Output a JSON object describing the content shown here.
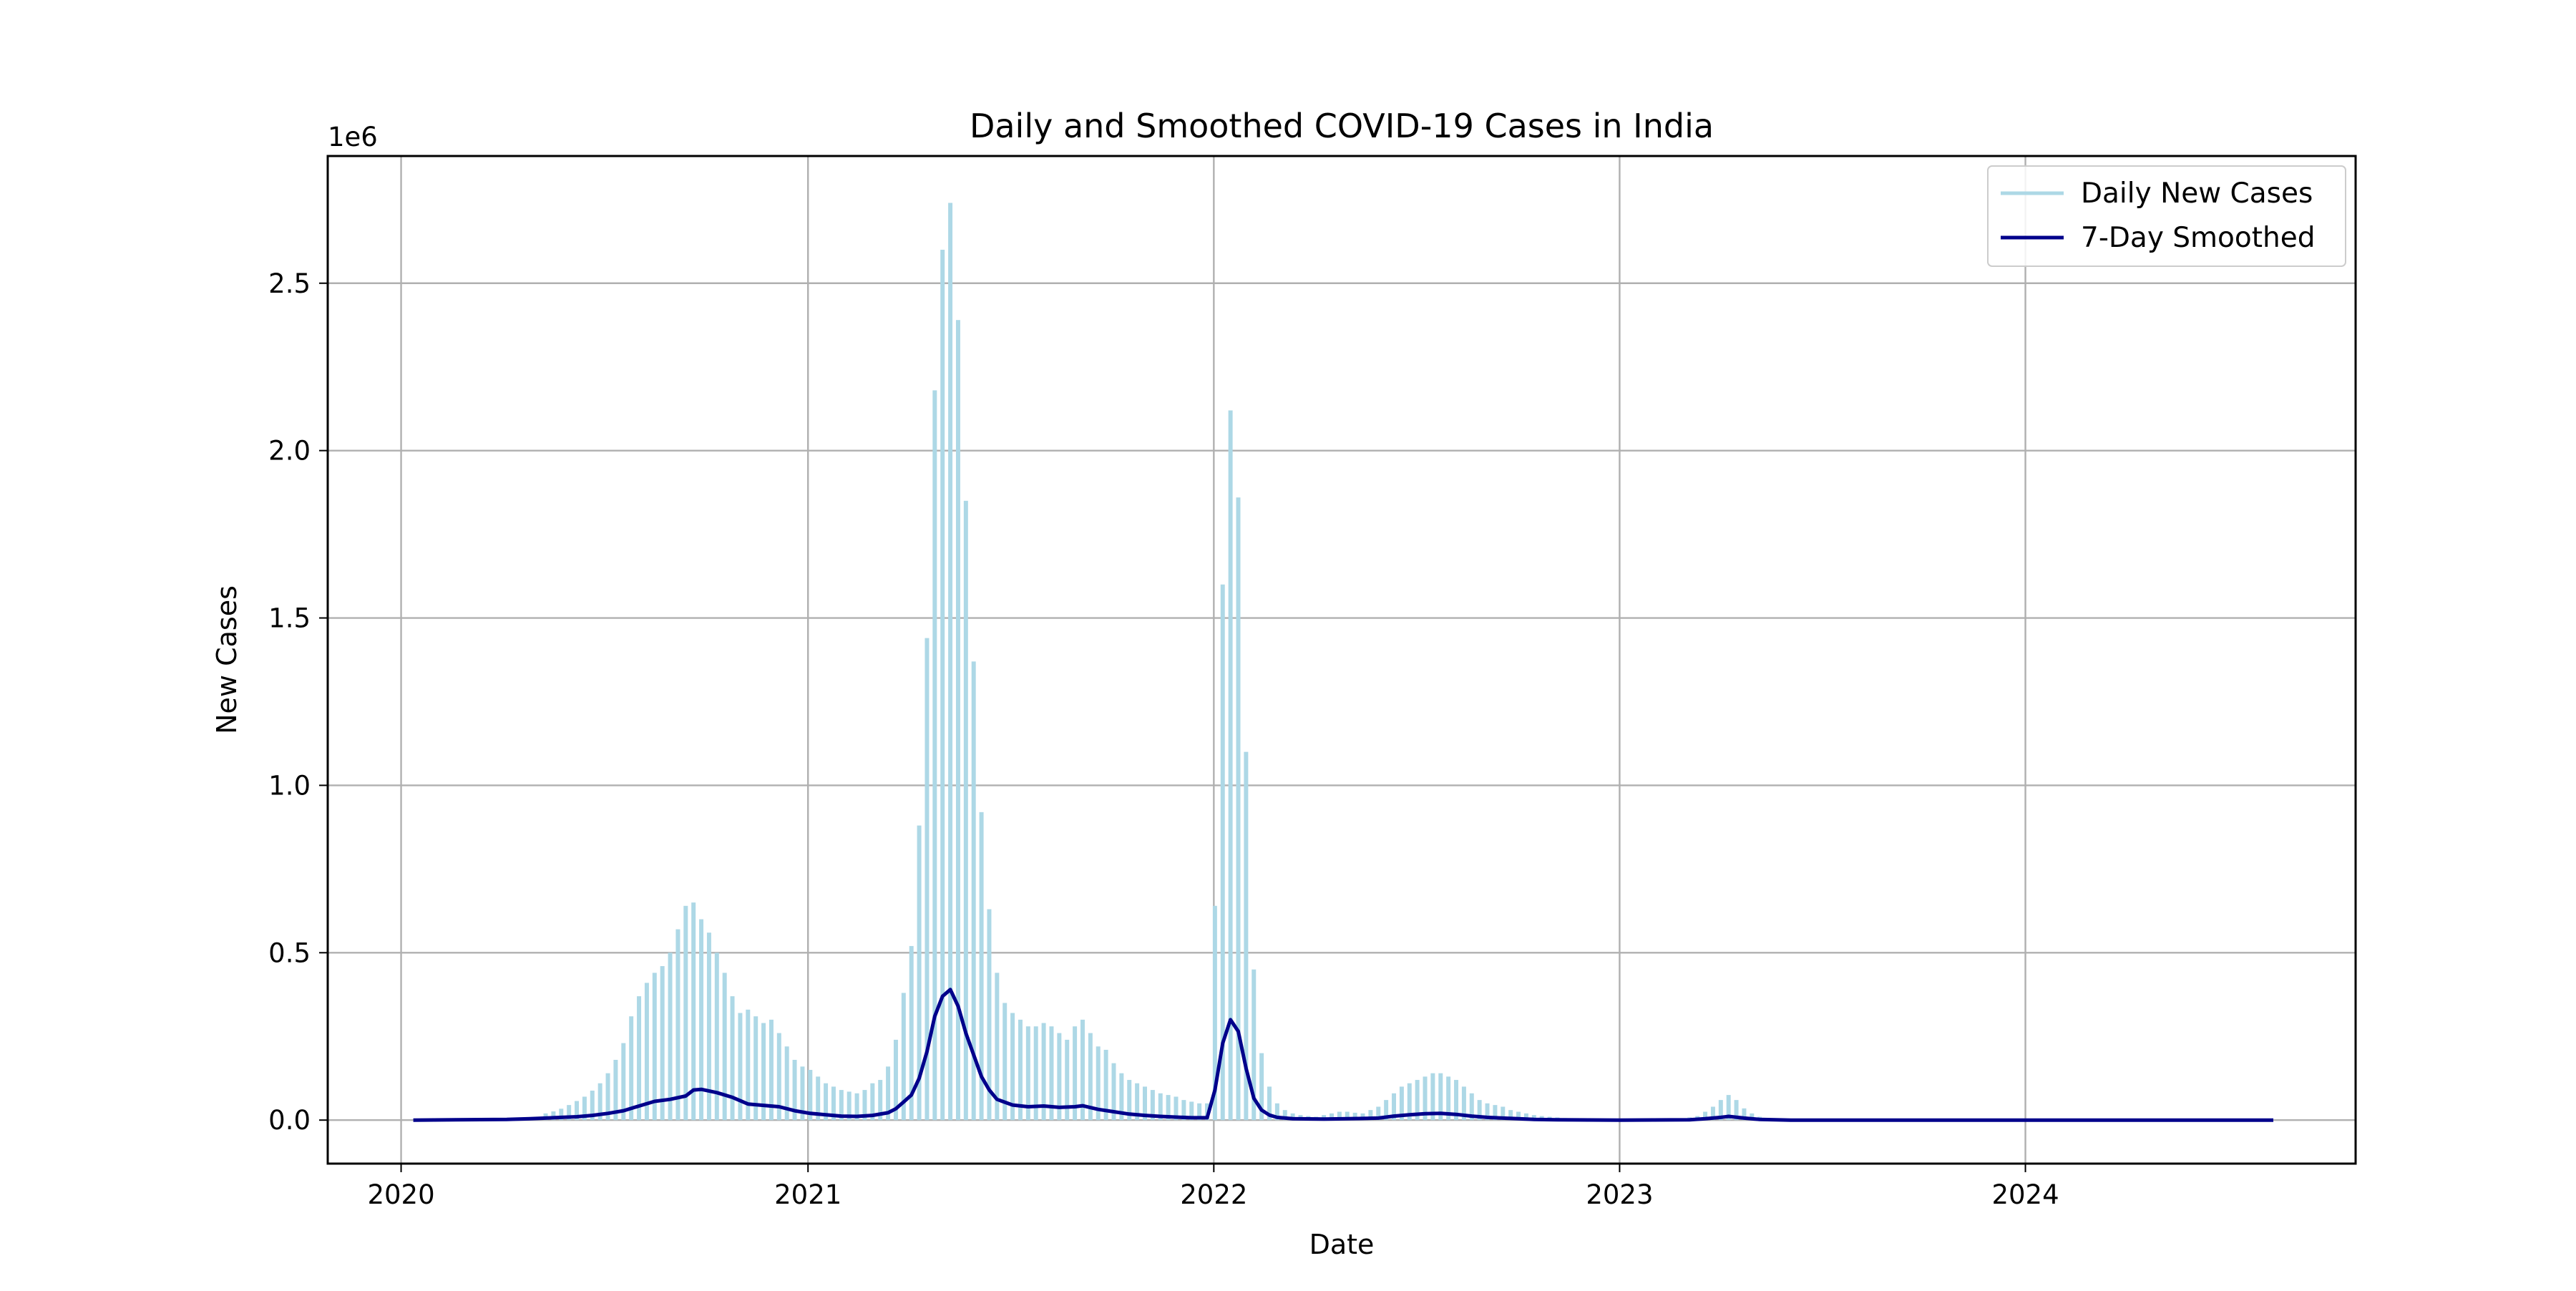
{
  "chart_data": {
    "type": "bar",
    "title": "Daily and Smoothed COVID-19 Cases in India",
    "xlabel": "Date",
    "ylabel": "New Cases",
    "y_offset_label": "1e6",
    "y_scale_factor": 1000000,
    "xlim": [
      "2019-10-27",
      "2024-10-24"
    ],
    "ylim": [
      -0.13,
      2.88
    ],
    "x_ticks": [
      {
        "date": "2020-01-01",
        "label": "2020"
      },
      {
        "date": "2021-01-01",
        "label": "2021"
      },
      {
        "date": "2022-01-01",
        "label": "2022"
      },
      {
        "date": "2023-01-01",
        "label": "2023"
      },
      {
        "date": "2024-01-01",
        "label": "2024"
      }
    ],
    "y_ticks": [
      {
        "value": 0.0,
        "label": "0.0"
      },
      {
        "value": 0.5,
        "label": "0.5"
      },
      {
        "value": 1.0,
        "label": "1.0"
      },
      {
        "value": 1.5,
        "label": "1.5"
      },
      {
        "value": 2.0,
        "label": "2.0"
      },
      {
        "value": 2.5,
        "label": "2.5"
      }
    ],
    "grid": true,
    "legend_position": "top-right",
    "series": [
      {
        "name": "Daily New Cases",
        "kind": "bar",
        "color": "#add8e6",
        "values": [
          [
            "2020-05-10",
            0.02
          ],
          [
            "2020-05-17",
            0.026
          ],
          [
            "2020-05-24",
            0.034
          ],
          [
            "2020-05-31",
            0.045
          ],
          [
            "2020-06-07",
            0.057
          ],
          [
            "2020-06-14",
            0.07
          ],
          [
            "2020-06-21",
            0.088
          ],
          [
            "2020-06-28",
            0.11
          ],
          [
            "2020-07-05",
            0.14
          ],
          [
            "2020-07-12",
            0.18
          ],
          [
            "2020-07-19",
            0.23
          ],
          [
            "2020-07-26",
            0.31
          ],
          [
            "2020-08-02",
            0.37
          ],
          [
            "2020-08-09",
            0.41
          ],
          [
            "2020-08-16",
            0.44
          ],
          [
            "2020-08-23",
            0.46
          ],
          [
            "2020-08-30",
            0.5
          ],
          [
            "2020-09-06",
            0.57
          ],
          [
            "2020-09-13",
            0.64
          ],
          [
            "2020-09-20",
            0.65
          ],
          [
            "2020-09-27",
            0.6
          ],
          [
            "2020-10-04",
            0.56
          ],
          [
            "2020-10-11",
            0.5
          ],
          [
            "2020-10-18",
            0.44
          ],
          [
            "2020-10-25",
            0.37
          ],
          [
            "2020-11-01",
            0.32
          ],
          [
            "2020-11-08",
            0.33
          ],
          [
            "2020-11-15",
            0.31
          ],
          [
            "2020-11-22",
            0.29
          ],
          [
            "2020-11-29",
            0.3
          ],
          [
            "2020-12-06",
            0.26
          ],
          [
            "2020-12-13",
            0.22
          ],
          [
            "2020-12-20",
            0.18
          ],
          [
            "2020-12-27",
            0.16
          ],
          [
            "2021-01-03",
            0.15
          ],
          [
            "2021-01-10",
            0.13
          ],
          [
            "2021-01-17",
            0.11
          ],
          [
            "2021-01-24",
            0.1
          ],
          [
            "2021-01-31",
            0.09
          ],
          [
            "2021-02-07",
            0.085
          ],
          [
            "2021-02-14",
            0.08
          ],
          [
            "2021-02-21",
            0.09
          ],
          [
            "2021-02-28",
            0.11
          ],
          [
            "2021-03-07",
            0.12
          ],
          [
            "2021-03-14",
            0.16
          ],
          [
            "2021-03-21",
            0.24
          ],
          [
            "2021-03-28",
            0.38
          ],
          [
            "2021-04-04",
            0.52
          ],
          [
            "2021-04-11",
            0.88
          ],
          [
            "2021-04-18",
            1.44
          ],
          [
            "2021-04-25",
            2.18
          ],
          [
            "2021-05-02",
            2.6
          ],
          [
            "2021-05-09",
            2.74
          ],
          [
            "2021-05-16",
            2.39
          ],
          [
            "2021-05-23",
            1.85
          ],
          [
            "2021-05-30",
            1.37
          ],
          [
            "2021-06-06",
            0.92
          ],
          [
            "2021-06-13",
            0.63
          ],
          [
            "2021-06-20",
            0.44
          ],
          [
            "2021-06-27",
            0.35
          ],
          [
            "2021-07-04",
            0.32
          ],
          [
            "2021-07-11",
            0.3
          ],
          [
            "2021-07-18",
            0.28
          ],
          [
            "2021-07-25",
            0.28
          ],
          [
            "2021-08-01",
            0.29
          ],
          [
            "2021-08-08",
            0.28
          ],
          [
            "2021-08-15",
            0.26
          ],
          [
            "2021-08-22",
            0.24
          ],
          [
            "2021-08-29",
            0.28
          ],
          [
            "2021-09-05",
            0.3
          ],
          [
            "2021-09-12",
            0.26
          ],
          [
            "2021-09-19",
            0.22
          ],
          [
            "2021-09-26",
            0.21
          ],
          [
            "2021-10-03",
            0.17
          ],
          [
            "2021-10-10",
            0.14
          ],
          [
            "2021-10-17",
            0.12
          ],
          [
            "2021-10-24",
            0.11
          ],
          [
            "2021-10-31",
            0.1
          ],
          [
            "2021-11-07",
            0.09
          ],
          [
            "2021-11-14",
            0.08
          ],
          [
            "2021-11-21",
            0.075
          ],
          [
            "2021-11-28",
            0.07
          ],
          [
            "2021-12-05",
            0.06
          ],
          [
            "2021-12-12",
            0.055
          ],
          [
            "2021-12-19",
            0.05
          ],
          [
            "2021-12-26",
            0.05
          ],
          [
            "2022-01-02",
            0.64
          ],
          [
            "2022-01-09",
            1.6
          ],
          [
            "2022-01-16",
            2.12
          ],
          [
            "2022-01-23",
            1.86
          ],
          [
            "2022-01-30",
            1.1
          ],
          [
            "2022-02-06",
            0.45
          ],
          [
            "2022-02-13",
            0.2
          ],
          [
            "2022-02-20",
            0.1
          ],
          [
            "2022-02-27",
            0.05
          ],
          [
            "2022-03-06",
            0.03
          ],
          [
            "2022-03-13",
            0.02
          ],
          [
            "2022-03-20",
            0.015
          ],
          [
            "2022-03-27",
            0.012
          ],
          [
            "2022-04-03",
            0.01
          ],
          [
            "2022-04-10",
            0.015
          ],
          [
            "2022-04-17",
            0.02
          ],
          [
            "2022-04-24",
            0.025
          ],
          [
            "2022-05-01",
            0.025
          ],
          [
            "2022-05-08",
            0.022
          ],
          [
            "2022-05-15",
            0.02
          ],
          [
            "2022-05-22",
            0.03
          ],
          [
            "2022-05-29",
            0.04
          ],
          [
            "2022-06-05",
            0.06
          ],
          [
            "2022-06-12",
            0.08
          ],
          [
            "2022-06-19",
            0.1
          ],
          [
            "2022-06-26",
            0.11
          ],
          [
            "2022-07-03",
            0.12
          ],
          [
            "2022-07-10",
            0.13
          ],
          [
            "2022-07-17",
            0.14
          ],
          [
            "2022-07-24",
            0.14
          ],
          [
            "2022-07-31",
            0.13
          ],
          [
            "2022-08-07",
            0.12
          ],
          [
            "2022-08-14",
            0.1
          ],
          [
            "2022-08-21",
            0.08
          ],
          [
            "2022-08-28",
            0.06
          ],
          [
            "2022-09-04",
            0.05
          ],
          [
            "2022-09-11",
            0.045
          ],
          [
            "2022-09-18",
            0.04
          ],
          [
            "2022-09-25",
            0.03
          ],
          [
            "2022-10-02",
            0.025
          ],
          [
            "2022-10-09",
            0.02
          ],
          [
            "2022-10-16",
            0.015
          ],
          [
            "2022-10-23",
            0.012
          ],
          [
            "2022-10-30",
            0.01
          ],
          [
            "2022-11-06",
            0.008
          ],
          [
            "2022-11-13",
            0.006
          ],
          [
            "2023-03-05",
            0.008
          ],
          [
            "2023-03-12",
            0.012
          ],
          [
            "2023-03-19",
            0.025
          ],
          [
            "2023-03-26",
            0.04
          ],
          [
            "2023-04-02",
            0.06
          ],
          [
            "2023-04-09",
            0.075
          ],
          [
            "2023-04-16",
            0.06
          ],
          [
            "2023-04-23",
            0.035
          ],
          [
            "2023-04-30",
            0.02
          ],
          [
            "2023-05-07",
            0.01
          ]
        ]
      },
      {
        "name": "7-Day Smoothed",
        "kind": "line",
        "color": "#00008b",
        "values": [
          [
            "2020-01-12",
            0.0
          ],
          [
            "2020-04-05",
            0.002
          ],
          [
            "2020-04-26",
            0.004
          ],
          [
            "2020-05-10",
            0.006
          ],
          [
            "2020-05-24",
            0.008
          ],
          [
            "2020-06-07",
            0.01
          ],
          [
            "2020-06-21",
            0.014
          ],
          [
            "2020-07-05",
            0.02
          ],
          [
            "2020-07-19",
            0.028
          ],
          [
            "2020-08-02",
            0.042
          ],
          [
            "2020-08-16",
            0.056
          ],
          [
            "2020-08-30",
            0.062
          ],
          [
            "2020-09-13",
            0.072
          ],
          [
            "2020-09-20",
            0.09
          ],
          [
            "2020-09-27",
            0.092
          ],
          [
            "2020-10-11",
            0.082
          ],
          [
            "2020-10-25",
            0.068
          ],
          [
            "2020-11-08",
            0.048
          ],
          [
            "2020-11-22",
            0.044
          ],
          [
            "2020-12-06",
            0.04
          ],
          [
            "2020-12-20",
            0.028
          ],
          [
            "2021-01-03",
            0.02
          ],
          [
            "2021-01-17",
            0.016
          ],
          [
            "2021-01-31",
            0.012
          ],
          [
            "2021-02-14",
            0.011
          ],
          [
            "2021-02-28",
            0.014
          ],
          [
            "2021-03-14",
            0.022
          ],
          [
            "2021-03-21",
            0.034
          ],
          [
            "2021-03-28",
            0.054
          ],
          [
            "2021-04-04",
            0.075
          ],
          [
            "2021-04-11",
            0.125
          ],
          [
            "2021-04-18",
            0.205
          ],
          [
            "2021-04-25",
            0.31
          ],
          [
            "2021-05-02",
            0.37
          ],
          [
            "2021-05-09",
            0.39
          ],
          [
            "2021-05-16",
            0.34
          ],
          [
            "2021-05-23",
            0.26
          ],
          [
            "2021-05-30",
            0.195
          ],
          [
            "2021-06-06",
            0.13
          ],
          [
            "2021-06-13",
            0.09
          ],
          [
            "2021-06-20",
            0.062
          ],
          [
            "2021-07-04",
            0.045
          ],
          [
            "2021-07-18",
            0.04
          ],
          [
            "2021-08-01",
            0.042
          ],
          [
            "2021-08-15",
            0.038
          ],
          [
            "2021-08-29",
            0.04
          ],
          [
            "2021-09-05",
            0.043
          ],
          [
            "2021-09-19",
            0.032
          ],
          [
            "2021-10-03",
            0.025
          ],
          [
            "2021-10-17",
            0.018
          ],
          [
            "2021-10-31",
            0.014
          ],
          [
            "2021-11-14",
            0.011
          ],
          [
            "2021-11-28",
            0.009
          ],
          [
            "2021-12-12",
            0.007
          ],
          [
            "2021-12-26",
            0.007
          ],
          [
            "2022-01-02",
            0.09
          ],
          [
            "2022-01-09",
            0.23
          ],
          [
            "2022-01-16",
            0.3
          ],
          [
            "2022-01-23",
            0.265
          ],
          [
            "2022-01-30",
            0.155
          ],
          [
            "2022-02-06",
            0.065
          ],
          [
            "2022-02-13",
            0.03
          ],
          [
            "2022-02-20",
            0.015
          ],
          [
            "2022-02-27",
            0.008
          ],
          [
            "2022-03-13",
            0.004
          ],
          [
            "2022-04-10",
            0.003
          ],
          [
            "2022-05-01",
            0.004
          ],
          [
            "2022-05-29",
            0.006
          ],
          [
            "2022-06-12",
            0.012
          ],
          [
            "2022-06-26",
            0.016
          ],
          [
            "2022-07-10",
            0.019
          ],
          [
            "2022-07-24",
            0.02
          ],
          [
            "2022-08-07",
            0.017
          ],
          [
            "2022-08-21",
            0.012
          ],
          [
            "2022-09-04",
            0.008
          ],
          [
            "2022-09-18",
            0.006
          ],
          [
            "2022-10-02",
            0.004
          ],
          [
            "2022-10-16",
            0.002
          ],
          [
            "2022-11-06",
            0.001
          ],
          [
            "2023-01-01",
            0.0
          ],
          [
            "2023-03-05",
            0.001
          ],
          [
            "2023-03-19",
            0.004
          ],
          [
            "2023-04-02",
            0.008
          ],
          [
            "2023-04-09",
            0.011
          ],
          [
            "2023-04-23",
            0.006
          ],
          [
            "2023-05-07",
            0.002
          ],
          [
            "2023-06-04",
            0.0
          ],
          [
            "2024-01-01",
            0.0
          ],
          [
            "2024-08-11",
            0.0
          ]
        ]
      }
    ]
  }
}
